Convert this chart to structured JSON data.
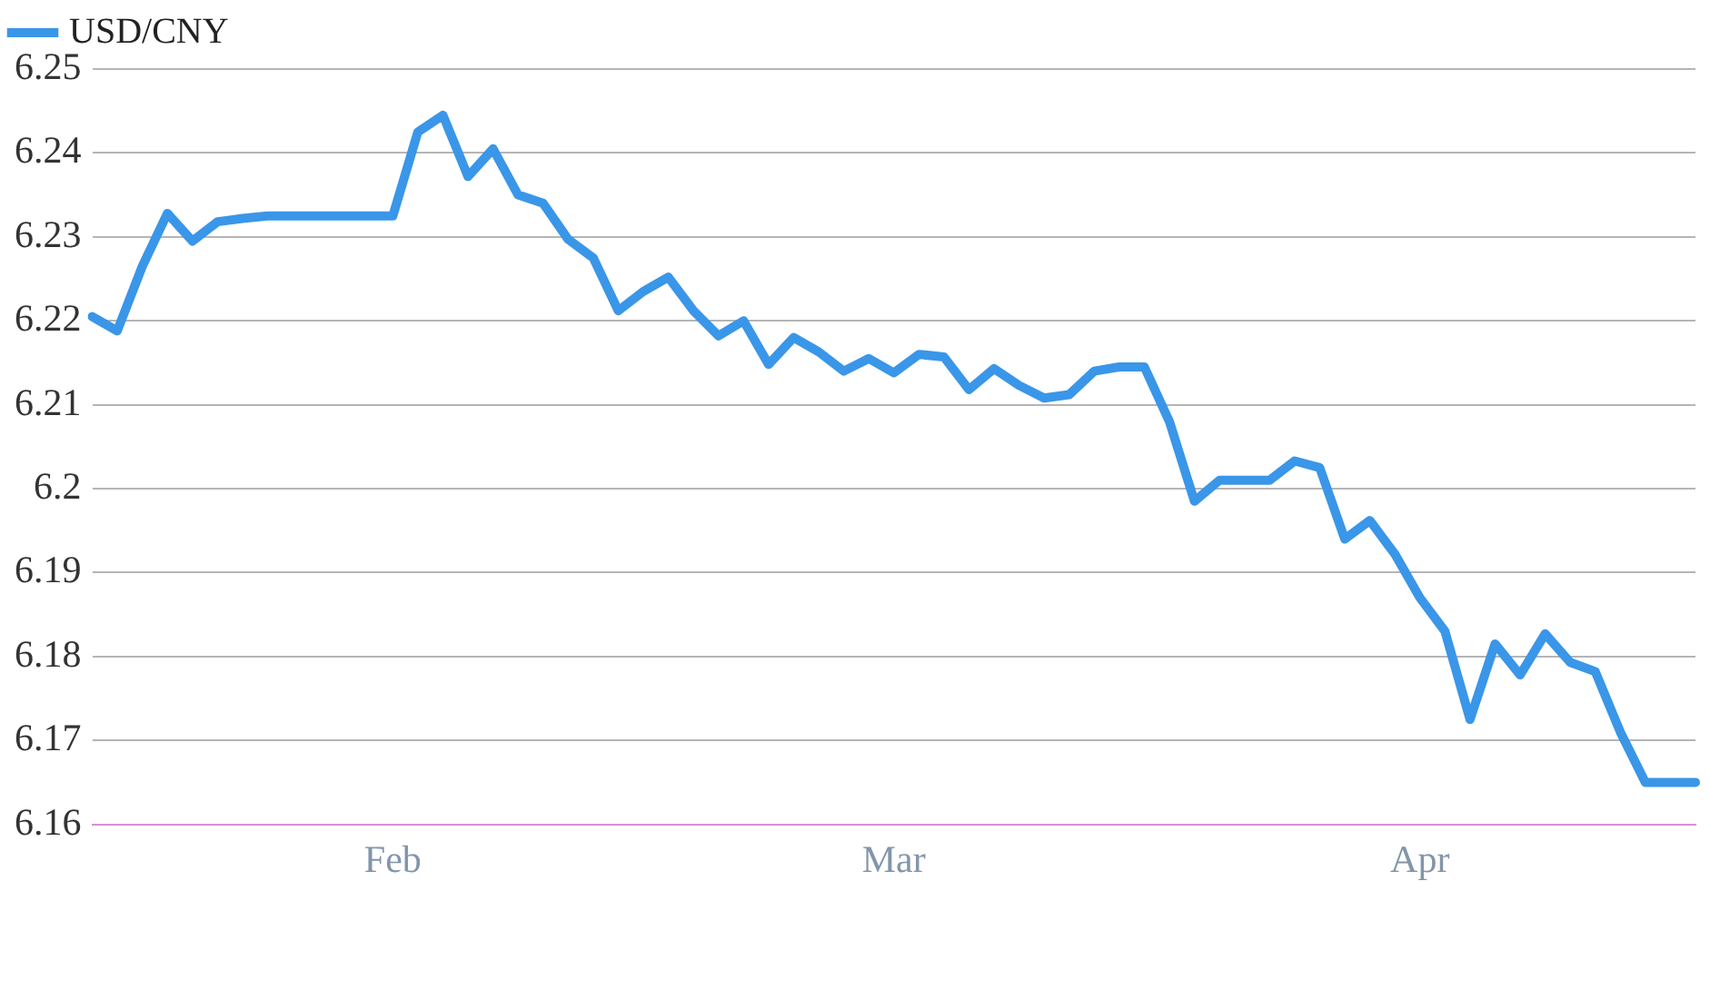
{
  "chart_data": {
    "type": "line",
    "categories": [
      null,
      null,
      null,
      null,
      null,
      null,
      null,
      null,
      null,
      null,
      null,
      null,
      "Feb",
      null,
      null,
      null,
      null,
      null,
      null,
      null,
      null,
      null,
      null,
      null,
      null,
      null,
      null,
      null,
      null,
      null,
      null,
      null,
      "Mar",
      null,
      null,
      null,
      null,
      null,
      null,
      null,
      null,
      null,
      null,
      null,
      null,
      null,
      null,
      null,
      null,
      null,
      null,
      null,
      null,
      "Apr",
      null,
      null,
      null,
      null,
      null,
      null,
      null,
      null,
      null,
      null,
      null
    ],
    "series": [
      {
        "name": "USD/CNY",
        "color": "#3a96e8",
        "values": [
          6.2205,
          6.2188,
          6.2265,
          6.2328,
          6.2295,
          6.2318,
          6.2322,
          6.2325,
          6.2325,
          6.2325,
          6.2325,
          6.2325,
          6.2325,
          6.2425,
          6.2445,
          6.2372,
          6.2405,
          6.235,
          6.234,
          6.2297,
          6.2275,
          6.2212,
          6.2235,
          6.2252,
          6.2212,
          6.2182,
          6.22,
          6.2148,
          6.218,
          6.2163,
          6.214,
          6.2155,
          6.2138,
          6.216,
          6.2157,
          6.2118,
          6.2143,
          6.2123,
          6.2108,
          6.2112,
          6.214,
          6.2145,
          6.2145,
          6.208,
          6.1985,
          6.201,
          6.201,
          6.201,
          6.2033,
          6.2025,
          6.194,
          6.1962,
          6.1922,
          6.187,
          6.183,
          6.1725,
          6.1815,
          6.1778,
          6.1827,
          6.1793,
          6.1782,
          6.171,
          6.165,
          6.165,
          6.165
        ]
      }
    ],
    "ylim": [
      6.16,
      6.25
    ],
    "yticks": [
      6.16,
      6.17,
      6.18,
      6.19,
      6.2,
      6.21,
      6.22,
      6.23,
      6.24,
      6.25
    ],
    "grid": "y",
    "legend": "top left",
    "marker": "none",
    "line_style": "solid"
  }
}
